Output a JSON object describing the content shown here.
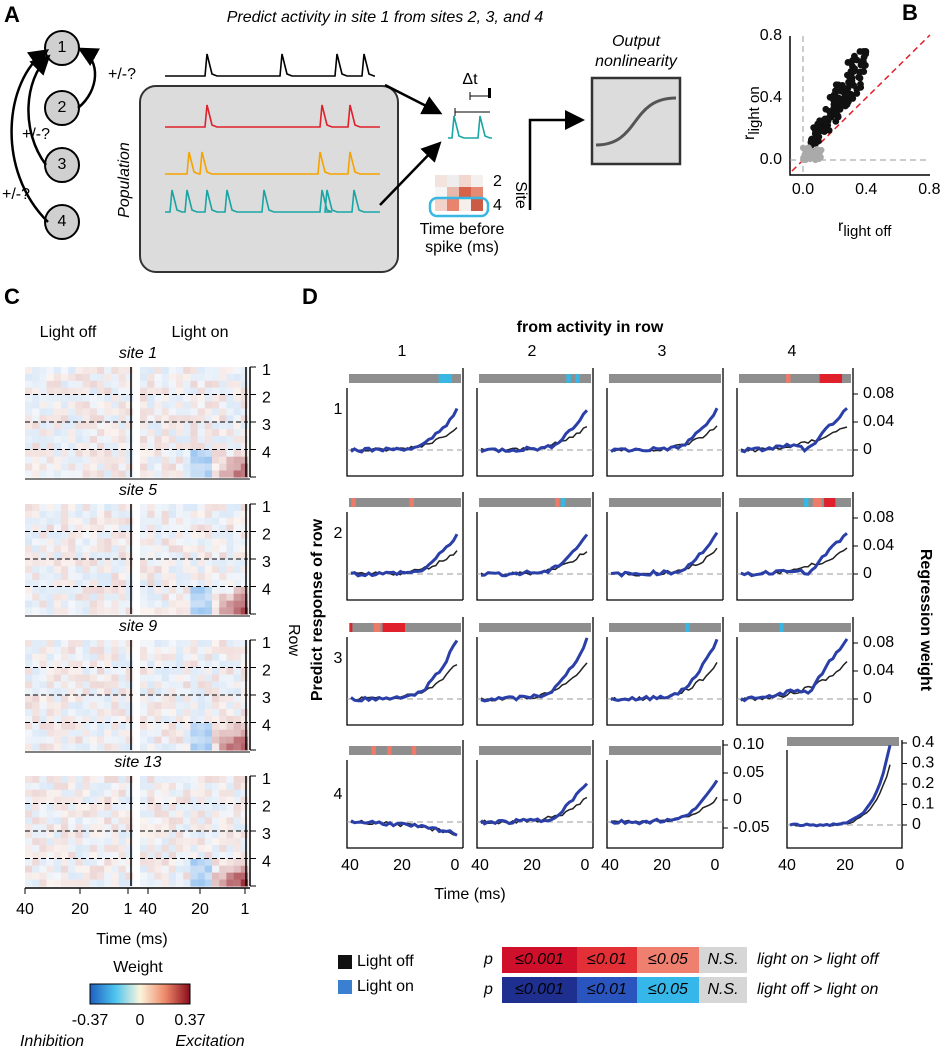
{
  "panel_a": {
    "label": "A",
    "title": "Predict activity in site 1 from sites 2, 3, and 4",
    "nodes": [
      "1",
      "2",
      "3",
      "4"
    ],
    "edge_labels": [
      "+/-?",
      "+/-?",
      "+/-?"
    ],
    "population": "Population",
    "delta": "Δt",
    "site": "Site",
    "site_ticks": [
      "2",
      "4"
    ],
    "time_before": [
      "Time before",
      "spike (ms)"
    ],
    "output": [
      "Output",
      "nonlinearity"
    ]
  },
  "panel_b": {
    "label": "B",
    "ylabel": "r",
    "ylabel_sub": "light on",
    "xlabel": "r",
    "xlabel_sub": "light off",
    "xticks": [
      "0.0",
      "0.4",
      "0.8"
    ],
    "yticks": [
      "0.0",
      "0.4",
      "0.8"
    ]
  },
  "panel_c": {
    "label": "C",
    "columns": [
      "Light off",
      "Light on"
    ],
    "sites": [
      "site 1",
      "site 5",
      "site 9",
      "site 13"
    ],
    "rows": [
      "1",
      "2",
      "3",
      "4"
    ],
    "row_label": "Row",
    "xticks": [
      "40",
      "20",
      "1"
    ],
    "xlabel": "Time (ms)",
    "colorbar": {
      "title": "Weight",
      "ticks": [
        "-0.37",
        "0",
        "0.37"
      ],
      "ends": [
        "Inhibition",
        "Excitation"
      ]
    }
  },
  "panel_d": {
    "label": "D",
    "title": "from activity in row",
    "columns": [
      "1",
      "2",
      "3",
      "4"
    ],
    "rows": [
      "1",
      "2",
      "3",
      "4"
    ],
    "ylabel": "Predict response of row",
    "y2label": "Regression weight",
    "yticks": [
      "0.08",
      "0.04",
      "0"
    ],
    "yticks_r4c3": [
      "0.10",
      "0.05",
      "0",
      "-0.05"
    ],
    "yticks_r4c4": [
      "0.4",
      "0.3",
      "0.2",
      "0.1",
      "0"
    ],
    "xticks": [
      "40",
      "20",
      "0"
    ],
    "xlabel": "Time (ms)"
  },
  "legend": {
    "entries": [
      "Light off",
      "Light on"
    ],
    "p_rows": [
      {
        "p": "p",
        "cells": [
          "≤0.001",
          "≤0.01",
          "≤0.05",
          "N.S."
        ],
        "label": "light on > light off"
      },
      {
        "p": "p",
        "cells": [
          "≤0.001",
          "≤0.01",
          "≤0.05",
          "N.S."
        ],
        "label": "light off > light on"
      }
    ]
  }
}
